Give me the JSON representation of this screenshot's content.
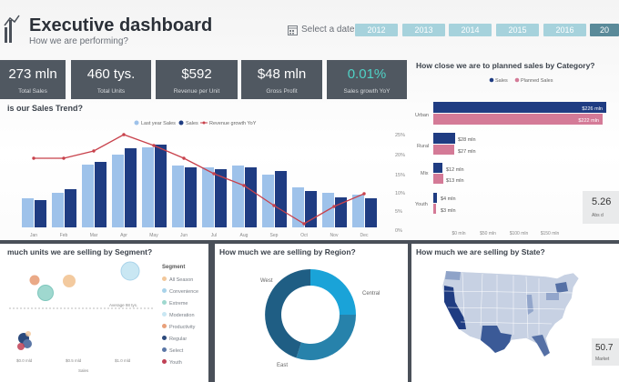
{
  "header": {
    "title": "Executive dashboard",
    "subtitle": "How we are performing?",
    "date_label": "Select a date:",
    "years": [
      "2012",
      "2013",
      "2014",
      "2015",
      "2016",
      "20"
    ]
  },
  "kpis": [
    {
      "value": "273 mln",
      "label": "Total Sales"
    },
    {
      "value": "460 tys.",
      "label": "Total Units"
    },
    {
      "value": "$592",
      "label": "Revenue per Unit"
    },
    {
      "value": "$48 mln",
      "label": "Gross Profit"
    },
    {
      "value": "0.01%",
      "label": "Sales growth YoY"
    }
  ],
  "trend": {
    "title": "is our Sales Trend?",
    "legend": [
      "Last year Sales",
      "Sales",
      "Revenue growth YoY"
    ],
    "right_axis": [
      "0%",
      "5%",
      "10%",
      "15%",
      "20%",
      "25%"
    ],
    "months": [
      "Jan",
      "Feb",
      "Mar",
      "Apr",
      "May",
      "Jun",
      "Jul",
      "Aug",
      "Sep",
      "Oct",
      "Nov",
      "Dec"
    ],
    "colors": {
      "last_year": "#9ec2ea",
      "sales": "#1f3c82",
      "growth": "#c8414b"
    }
  },
  "category": {
    "title": "How close we are to planned sales by Category?",
    "legend": [
      "Sales",
      "Planned Sales"
    ],
    "rows": [
      {
        "label": "Urban",
        "sales": "$226 mln",
        "planned": "$222 mln"
      },
      {
        "label": "Rural",
        "sales": "$28 mln",
        "planned": "$27 mln"
      },
      {
        "label": "Mix",
        "sales": "$12 mln",
        "planned": "$13 mln"
      },
      {
        "label": "Youth",
        "sales": "$4 mln",
        "planned": "$3 mln"
      }
    ],
    "axis": [
      "$0 mln",
      "$50 mln",
      "$100 mln",
      "$150 mln",
      "$200 mln"
    ],
    "side_value": "5.26",
    "side_label": "Abs d"
  },
  "segment": {
    "title": "much units we are selling by Segment?",
    "legend_title": "Segment",
    "items": [
      {
        "name": "All Season",
        "color": "#f2c79a"
      },
      {
        "name": "Convenience",
        "color": "#a9d3ea"
      },
      {
        "name": "Extreme",
        "color": "#9fd8cf"
      },
      {
        "name": "Moderation",
        "color": "#c9e7f3"
      },
      {
        "name": "Productivity",
        "color": "#e8a07a"
      },
      {
        "name": "Regular",
        "color": "#2c4a7c"
      },
      {
        "name": "Select",
        "color": "#5a76a6"
      },
      {
        "name": "Youth",
        "color": "#c04055"
      }
    ],
    "avg_label": "Average 98 tys.",
    "x_ticks": [
      "$0.0 mld",
      "$0.5 mld",
      "$1.0 mld"
    ],
    "x_label": "Sales"
  },
  "region": {
    "title": "How much we are selling by Region?",
    "labels": [
      "West",
      "Central",
      "East"
    ],
    "colors": [
      "#1aa3d8",
      "#1f5e84",
      "#2782ab"
    ]
  },
  "state": {
    "title": "How much we are selling by State?",
    "side_value": "50.7",
    "side_label": "Market"
  }
}
